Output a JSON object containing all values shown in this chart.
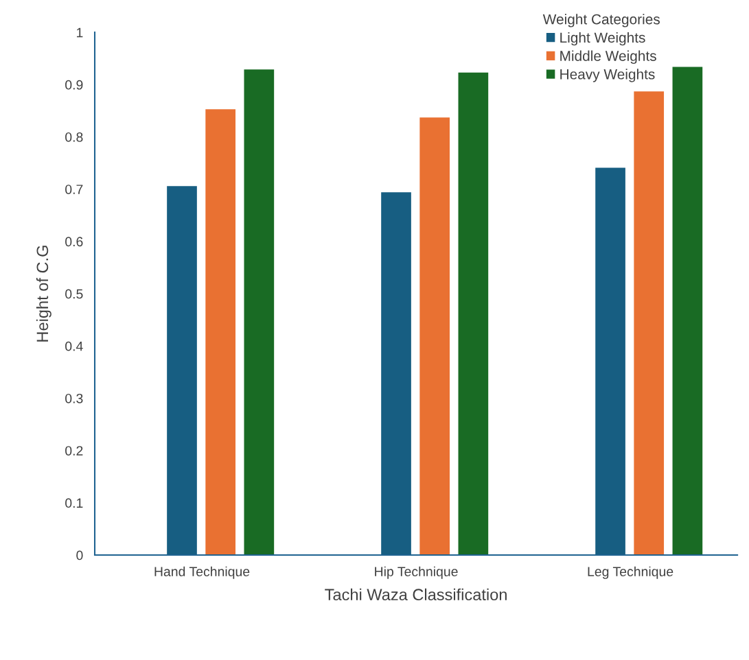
{
  "chart_data": {
    "type": "bar",
    "xlabel": "Tachi Waza Classification",
    "ylabel": "Height of C.G",
    "legend_title": "Weight Categories",
    "categories": [
      "Hand Technique",
      "Hip Technique",
      "Leg Technique"
    ],
    "series": [
      {
        "name": "Light Weights",
        "color": "#175e82",
        "values": [
          0.706,
          0.694,
          0.741
        ]
      },
      {
        "name": "Middle Weights",
        "color": "#e97132",
        "values": [
          0.853,
          0.837,
          0.887
        ]
      },
      {
        "name": "Heavy Weights",
        "color": "#196b24",
        "values": [
          0.929,
          0.923,
          0.934
        ]
      }
    ],
    "ylim": [
      0,
      1
    ],
    "yticks": [
      0,
      0.1,
      0.2,
      0.3,
      0.4,
      0.5,
      0.6,
      0.7,
      0.8,
      0.9,
      1
    ],
    "grid": false,
    "legend": "top right"
  }
}
